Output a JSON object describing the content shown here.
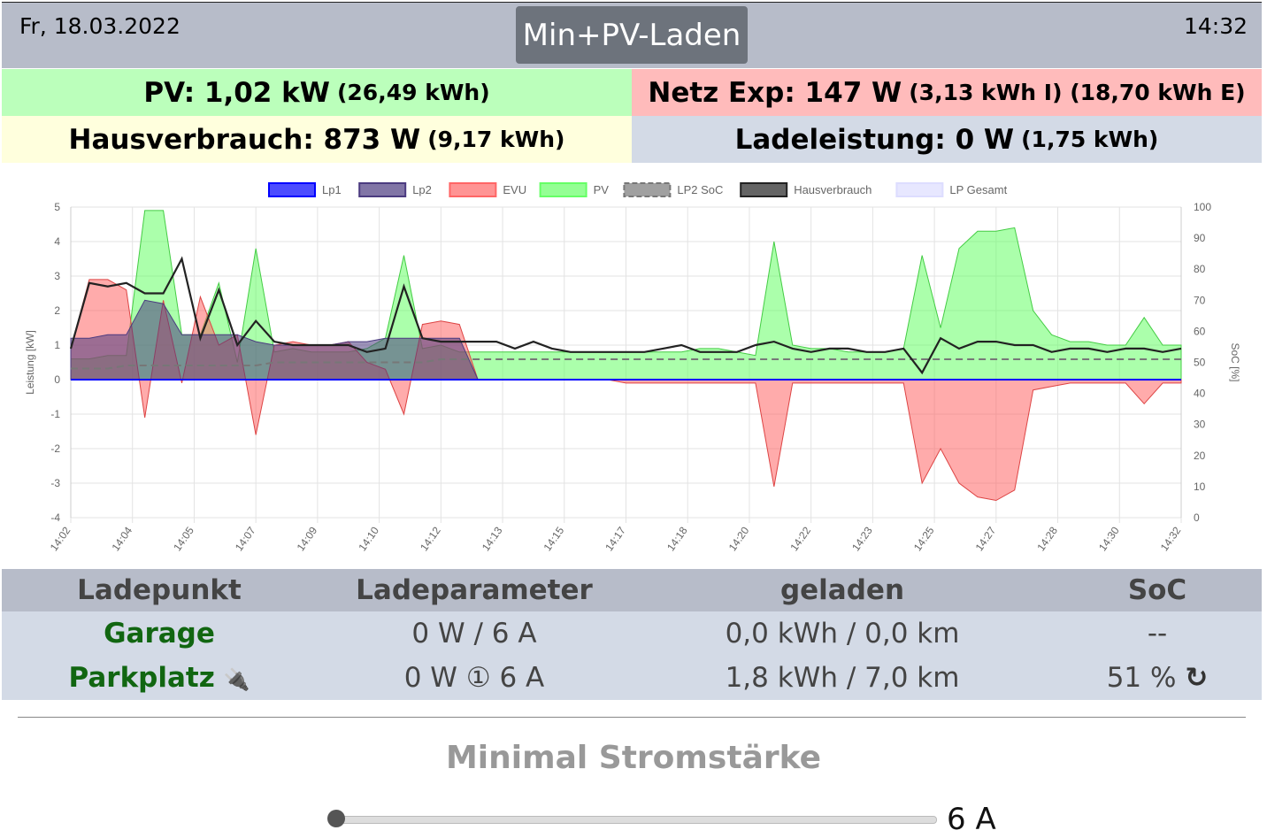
{
  "header": {
    "date": "Fr, 18.03.2022",
    "time": "14:32",
    "mode": "Min+PV-Laden"
  },
  "summary": {
    "pv": {
      "label": "PV: 1,02 kW",
      "sub": "(26,49 kWh)"
    },
    "netz": {
      "label": "Netz Exp: 147 W",
      "sub": "(3,13 kWh I) (18,70 kWh E)"
    },
    "haus": {
      "label": "Hausverbrauch: 873 W",
      "sub": "(9,17 kWh)"
    },
    "lade": {
      "label": "Ladeleistung: 0 W",
      "sub": "(1,75 kWh)"
    }
  },
  "chart_data": {
    "type": "area",
    "ylabel": "Leistung [kW]",
    "y2label": "SoC [%]",
    "ylim": [
      -4,
      5
    ],
    "y2lim": [
      0,
      100
    ],
    "x_ticks": [
      "14:02",
      "14:04",
      "14:05",
      "14:07",
      "14:09",
      "14:10",
      "14:12",
      "14:13",
      "14:15",
      "14:17",
      "14:18",
      "14:20",
      "14:22",
      "14:23",
      "14:25",
      "14:27",
      "14:28",
      "14:30",
      "14:32"
    ],
    "legend": [
      "Lp1",
      "Lp2",
      "EVU",
      "PV",
      "LP2 SoC",
      "Hausverbrauch",
      "LP Gesamt"
    ],
    "colors": {
      "Lp1": "#0000ff",
      "Lp2": "#4b3b80",
      "EVU": "#ff6666",
      "PV": "#66ff66",
      "LP2 SoC": "#777777",
      "Hausverbrauch": "#222222",
      "LP Gesamt": "#ddddff"
    },
    "x": [
      0,
      0.5,
      1,
      1.5,
      2,
      2.5,
      3,
      3.5,
      4,
      4.5,
      5,
      5.5,
      6,
      6.5,
      7,
      7.5,
      8,
      8.5,
      9,
      9.5,
      10,
      10.5,
      11,
      11.5,
      12,
      12.5,
      13,
      13.5,
      14,
      14.5,
      15,
      15.5,
      16,
      16.5,
      17,
      17.5,
      18,
      18.5,
      19,
      19.5,
      20,
      20.5,
      21,
      21.5,
      22,
      22.5,
      23,
      23.5,
      24,
      24.5,
      25,
      25.5,
      26,
      26.5,
      27,
      27.5,
      28,
      28.5,
      29,
      29.5,
      30
    ],
    "series": [
      {
        "name": "PV",
        "values": [
          0.6,
          0.6,
          0.7,
          0.7,
          4.9,
          4.9,
          1.3,
          1.3,
          2.8,
          0.5,
          3.8,
          0.8,
          0.9,
          0.8,
          0.8,
          0.8,
          0.9,
          1.2,
          3.6,
          0.9,
          1.0,
          0.8,
          0.8,
          0.8,
          0.8,
          0.8,
          0.8,
          0.8,
          0.8,
          0.8,
          0.8,
          0.8,
          0.8,
          0.8,
          0.9,
          0.9,
          0.8,
          0.7,
          4.0,
          1.0,
          0.9,
          0.9,
          0.8,
          0.8,
          0.8,
          0.9,
          3.6,
          1.5,
          3.8,
          4.3,
          4.3,
          4.4,
          2.0,
          1.3,
          1.1,
          1.1,
          1.0,
          1.0,
          1.8,
          1.0,
          1.0
        ]
      },
      {
        "name": "EVU",
        "values": [
          0.9,
          2.9,
          2.9,
          2.6,
          -1.1,
          2.3,
          -0.1,
          2.4,
          1.0,
          1.3,
          -1.6,
          1.0,
          1.1,
          1.0,
          1.0,
          1.1,
          0.5,
          0.3,
          -1.0,
          1.6,
          1.7,
          1.6,
          0.0,
          0.0,
          0.0,
          0.0,
          0.0,
          0.0,
          0.0,
          0.0,
          -0.1,
          -0.1,
          -0.1,
          -0.1,
          -0.1,
          -0.1,
          -0.1,
          -0.1,
          -3.1,
          -0.1,
          -0.1,
          -0.1,
          -0.1,
          -0.1,
          -0.1,
          -0.1,
          -3.0,
          -2.0,
          -3.0,
          -3.4,
          -3.5,
          -3.2,
          -0.3,
          -0.2,
          -0.1,
          -0.1,
          -0.1,
          -0.1,
          -0.7,
          -0.1,
          -0.1
        ]
      },
      {
        "name": "Hausverbrauch",
        "values": [
          0.9,
          2.8,
          2.7,
          2.8,
          2.5,
          2.5,
          3.5,
          1.2,
          2.6,
          1.0,
          1.7,
          1.1,
          1.0,
          1.0,
          1.0,
          1.0,
          0.8,
          0.9,
          2.7,
          1.2,
          1.1,
          1.1,
          1.1,
          1.1,
          0.9,
          1.1,
          0.9,
          0.8,
          0.8,
          0.8,
          0.8,
          0.8,
          0.9,
          1.0,
          0.8,
          0.8,
          0.8,
          1.0,
          1.1,
          0.9,
          0.8,
          0.9,
          0.9,
          0.8,
          0.8,
          0.9,
          0.2,
          1.2,
          0.9,
          1.1,
          1.1,
          1.0,
          1.0,
          0.8,
          0.9,
          0.9,
          0.8,
          0.9,
          0.9,
          0.8,
          0.9
        ]
      },
      {
        "name": "Lp2",
        "values": [
          1.2,
          1.2,
          1.3,
          1.3,
          2.3,
          2.2,
          1.3,
          1.3,
          1.3,
          1.3,
          1.1,
          1.0,
          1.0,
          1.0,
          1.0,
          1.1,
          1.1,
          1.2,
          1.2,
          1.2,
          1.2,
          1.2,
          0.0,
          0.0,
          0.0,
          0.0,
          0.0,
          0.0,
          0.0,
          0.0,
          0.0,
          0.0,
          0.0,
          0.0,
          0.0,
          0.0,
          0.0,
          0.0,
          0.0,
          0.0,
          0.0,
          0.0,
          0.0,
          0.0,
          0.0,
          0.0,
          0.0,
          0.0,
          0.0,
          0.0,
          0.0,
          0.0,
          0.0,
          0.0,
          0.0,
          0.0,
          0.0,
          0.0,
          0.0,
          0.0,
          0.0
        ]
      },
      {
        "name": "Lp1",
        "values": [
          0,
          0,
          0,
          0,
          0,
          0,
          0,
          0,
          0,
          0,
          0,
          0,
          0,
          0,
          0,
          0,
          0,
          0,
          0,
          0,
          0,
          0,
          0,
          0,
          0,
          0,
          0,
          0,
          0,
          0,
          0,
          0,
          0,
          0,
          0,
          0,
          0,
          0,
          0,
          0,
          0,
          0,
          0,
          0,
          0,
          0,
          0,
          0,
          0,
          0,
          0,
          0,
          0,
          0,
          0,
          0,
          0,
          0,
          0,
          0,
          0
        ]
      },
      {
        "name": "LP2 SoC",
        "axis": "right",
        "values": [
          48,
          48,
          48,
          49,
          49,
          49,
          49,
          49,
          49,
          49,
          49,
          50,
          50,
          50,
          50,
          50,
          50,
          50,
          50,
          50,
          51,
          51,
          51,
          51,
          51,
          51,
          51,
          51,
          51,
          51,
          51,
          51,
          51,
          51,
          51,
          51,
          51,
          51,
          51,
          51,
          51,
          51,
          51,
          51,
          51,
          51,
          51,
          51,
          51,
          51,
          51,
          51,
          51,
          51,
          51,
          51,
          51,
          51,
          51,
          51,
          51
        ]
      }
    ]
  },
  "table": {
    "headers": [
      "Ladepunkt",
      "Ladeparameter",
      "geladen",
      "SoC"
    ],
    "rows": [
      {
        "name": "Garage",
        "param": "0 W / 6 A",
        "geladen": "0,0 kWh / 0,0 km",
        "soc": "--"
      },
      {
        "name": "Parkplatz",
        "param": "0 W ① 6 A",
        "geladen": "1,8 kWh / 7,0 km",
        "soc": "51 %"
      }
    ]
  },
  "min_current": {
    "label": "Minimal Stromstärke",
    "value": "6 A",
    "fraction": 0.0
  }
}
